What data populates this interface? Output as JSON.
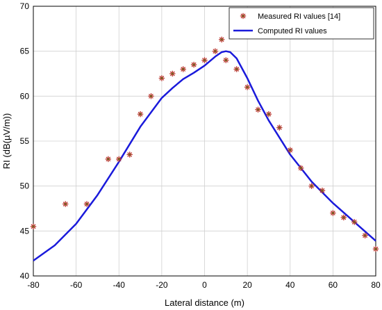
{
  "chart_data": {
    "type": "scatter",
    "title": "",
    "xlabel": "Lateral distance (m)",
    "ylabel": "RI (dB(µV/m))",
    "xlim": [
      -80,
      80
    ],
    "ylim": [
      40,
      70
    ],
    "xticks": [
      -80,
      -60,
      -40,
      -20,
      0,
      20,
      40,
      60,
      80
    ],
    "yticks": [
      40,
      45,
      50,
      55,
      60,
      65,
      70
    ],
    "grid": true,
    "legend_position": "top-right",
    "series": [
      {
        "name": "Measured RI values [14]",
        "kind": "scatter",
        "marker": "asterisk",
        "color": "#b8322a",
        "points": [
          [
            -80,
            45.5
          ],
          [
            -65,
            48
          ],
          [
            -55,
            48
          ],
          [
            -45,
            53
          ],
          [
            -40,
            53
          ],
          [
            -35,
            53.5
          ],
          [
            -30,
            58
          ],
          [
            -25,
            60
          ],
          [
            -20,
            62
          ],
          [
            -15,
            62.5
          ],
          [
            -10,
            63
          ],
          [
            -5,
            63.5
          ],
          [
            0,
            64
          ],
          [
            5,
            65
          ],
          [
            8,
            66.3
          ],
          [
            10,
            64
          ],
          [
            15,
            63
          ],
          [
            20,
            61
          ],
          [
            25,
            58.5
          ],
          [
            30,
            58
          ],
          [
            35,
            56.5
          ],
          [
            40,
            54
          ],
          [
            45,
            52
          ],
          [
            50,
            50
          ],
          [
            55,
            49.5
          ],
          [
            60,
            47
          ],
          [
            65,
            46.5
          ],
          [
            70,
            46
          ],
          [
            75,
            44.5
          ],
          [
            80,
            43
          ]
        ]
      },
      {
        "name": "Computed RI values",
        "kind": "line",
        "color": "#1a1adb",
        "points": [
          [
            -80,
            41.7
          ],
          [
            -70,
            43.4
          ],
          [
            -60,
            45.8
          ],
          [
            -50,
            49.0
          ],
          [
            -40,
            52.7
          ],
          [
            -30,
            56.6
          ],
          [
            -20,
            59.8
          ],
          [
            -15,
            60.9
          ],
          [
            -10,
            61.9
          ],
          [
            -5,
            62.6
          ],
          [
            0,
            63.4
          ],
          [
            5,
            64.4
          ],
          [
            8,
            64.9
          ],
          [
            10,
            65.0
          ],
          [
            12,
            64.9
          ],
          [
            15,
            64.2
          ],
          [
            20,
            62.0
          ],
          [
            25,
            59.5
          ],
          [
            30,
            57.3
          ],
          [
            40,
            53.5
          ],
          [
            50,
            50.5
          ],
          [
            60,
            48.1
          ],
          [
            70,
            46.0
          ],
          [
            80,
            43.9
          ]
        ]
      }
    ]
  }
}
